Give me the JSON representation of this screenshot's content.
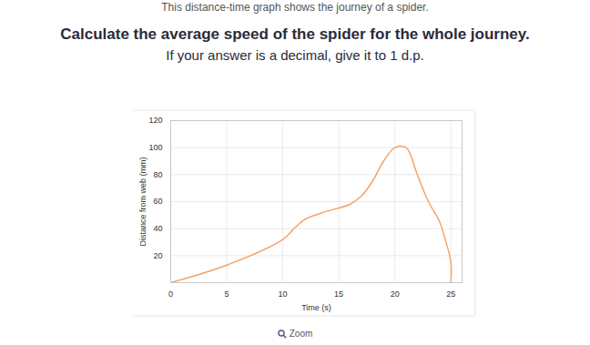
{
  "texts": {
    "intro": "This distance-time graph shows the journey of a spider.",
    "question": "Calculate the average speed of the spider for the whole journey.",
    "instruction": "If your answer is a decimal, give it to 1 d.p.",
    "zoom": "Zoom"
  },
  "chart_data": {
    "type": "line",
    "x": [
      0,
      5,
      10,
      11,
      12,
      14,
      16,
      17,
      18,
      19,
      20,
      21,
      22,
      23,
      24,
      24.5,
      25,
      25
    ],
    "values": [
      0,
      13,
      32,
      40,
      47,
      53,
      58,
      64,
      75,
      90,
      100,
      100,
      80,
      60,
      45,
      32,
      15,
      0
    ],
    "color": "#f4a46a",
    "x_label": "Time (s)",
    "y_label": "Distance from web (mm)",
    "xlim": [
      0,
      26
    ],
    "xticks": [
      0,
      5,
      10,
      15,
      20,
      25
    ],
    "ylim": [
      0,
      120
    ],
    "yticks": [
      20,
      40,
      60,
      80,
      100,
      120
    ],
    "grid": true
  }
}
